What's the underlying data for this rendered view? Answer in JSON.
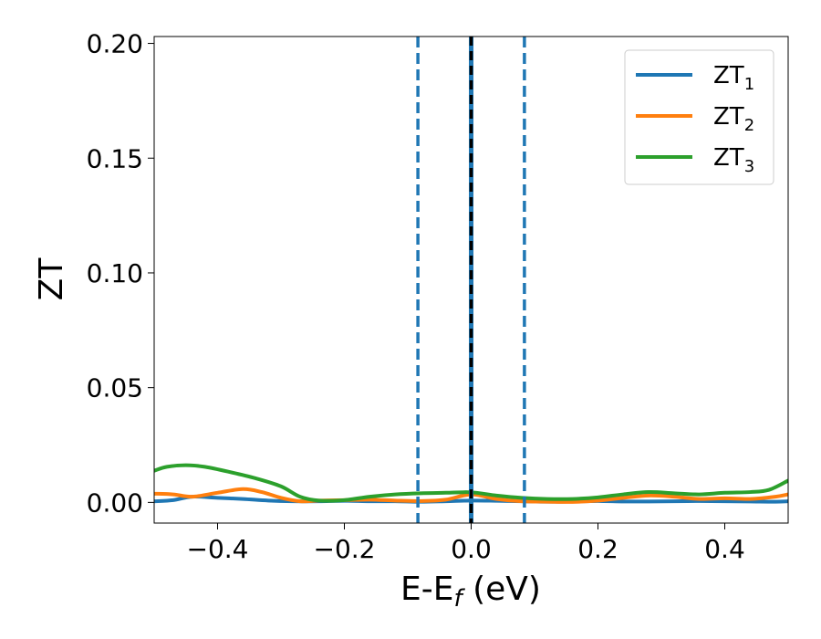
{
  "chart_data": {
    "type": "line",
    "xlabel": "E-E",
    "xlabel_sub": "f",
    "xlabel_unit": "(eV)",
    "ylabel": "ZT",
    "xlim": [
      -0.5,
      0.5
    ],
    "ylim": [
      -0.009,
      0.203
    ],
    "x_ticks": [
      -0.4,
      -0.2,
      0.0,
      0.2,
      0.4
    ],
    "x_tick_labels": [
      "−0.4",
      "−0.2",
      "0.0",
      "0.2",
      "0.4"
    ],
    "y_ticks": [
      0.0,
      0.05,
      0.1,
      0.15,
      0.2
    ],
    "y_tick_labels": [
      "0.00",
      "0.05",
      "0.10",
      "0.15",
      "0.20"
    ],
    "grid": false,
    "legend_position": "top-right",
    "series": [
      {
        "name": "ZT",
        "name_sub": "1",
        "color": "#1f77b4",
        "x": [
          -0.5,
          -0.47,
          -0.44,
          -0.4,
          -0.36,
          -0.32,
          -0.28,
          -0.24,
          -0.2,
          -0.16,
          -0.12,
          -0.08,
          -0.04,
          0.0,
          0.04,
          0.08,
          0.12,
          0.16,
          0.2,
          0.24,
          0.28,
          0.32,
          0.36,
          0.4,
          0.44,
          0.48,
          0.5
        ],
        "y": [
          0.0005,
          0.001,
          0.0025,
          0.002,
          0.0015,
          0.0008,
          0.0005,
          0.0005,
          0.0007,
          0.0005,
          0.0005,
          0.0003,
          0.0005,
          0.0008,
          0.0007,
          0.0005,
          0.0003,
          0.0004,
          0.0006,
          0.0004,
          0.0004,
          0.0005,
          0.0006,
          0.0005,
          0.0004,
          0.0003,
          0.0005
        ]
      },
      {
        "name": "ZT",
        "name_sub": "2",
        "color": "#ff7f0e",
        "x": [
          -0.5,
          -0.47,
          -0.44,
          -0.4,
          -0.36,
          -0.33,
          -0.3,
          -0.27,
          -0.24,
          -0.2,
          -0.16,
          -0.12,
          -0.08,
          -0.04,
          0.0,
          0.04,
          0.08,
          0.12,
          0.16,
          0.2,
          0.24,
          0.28,
          0.32,
          0.36,
          0.4,
          0.44,
          0.48,
          0.5
        ],
        "y": [
          0.0038,
          0.0035,
          0.0025,
          0.0042,
          0.0058,
          0.0045,
          0.002,
          0.0005,
          0.0008,
          0.001,
          0.0012,
          0.0008,
          0.0006,
          0.0012,
          0.0035,
          0.0015,
          0.0005,
          0.0003,
          0.0002,
          0.0008,
          0.002,
          0.003,
          0.0025,
          0.0015,
          0.0018,
          0.0015,
          0.0025,
          0.0035
        ]
      },
      {
        "name": "ZT",
        "name_sub": "3",
        "color": "#2ca02c",
        "x": [
          -0.5,
          -0.48,
          -0.45,
          -0.42,
          -0.38,
          -0.34,
          -0.3,
          -0.27,
          -0.24,
          -0.2,
          -0.16,
          -0.12,
          -0.08,
          -0.04,
          0.0,
          0.04,
          0.08,
          0.12,
          0.16,
          0.2,
          0.24,
          0.28,
          0.32,
          0.36,
          0.4,
          0.44,
          0.47,
          0.5
        ],
        "y": [
          0.0138,
          0.0155,
          0.0162,
          0.0155,
          0.0132,
          0.0105,
          0.007,
          0.0025,
          0.0008,
          0.001,
          0.0025,
          0.0035,
          0.004,
          0.0042,
          0.0044,
          0.003,
          0.002,
          0.0015,
          0.0015,
          0.0022,
          0.0035,
          0.0045,
          0.004,
          0.0035,
          0.0042,
          0.0045,
          0.0055,
          0.0095
        ]
      }
    ],
    "vertical_lines": [
      {
        "x": -0.084,
        "style": "dashed",
        "color": "#1f77b4"
      },
      {
        "x": 0.0,
        "style": "solid",
        "color": "#1f77b4"
      },
      {
        "x": 0.0,
        "style": "dashed",
        "color": "#000000"
      },
      {
        "x": 0.084,
        "style": "dashed",
        "color": "#1f77b4"
      }
    ]
  }
}
